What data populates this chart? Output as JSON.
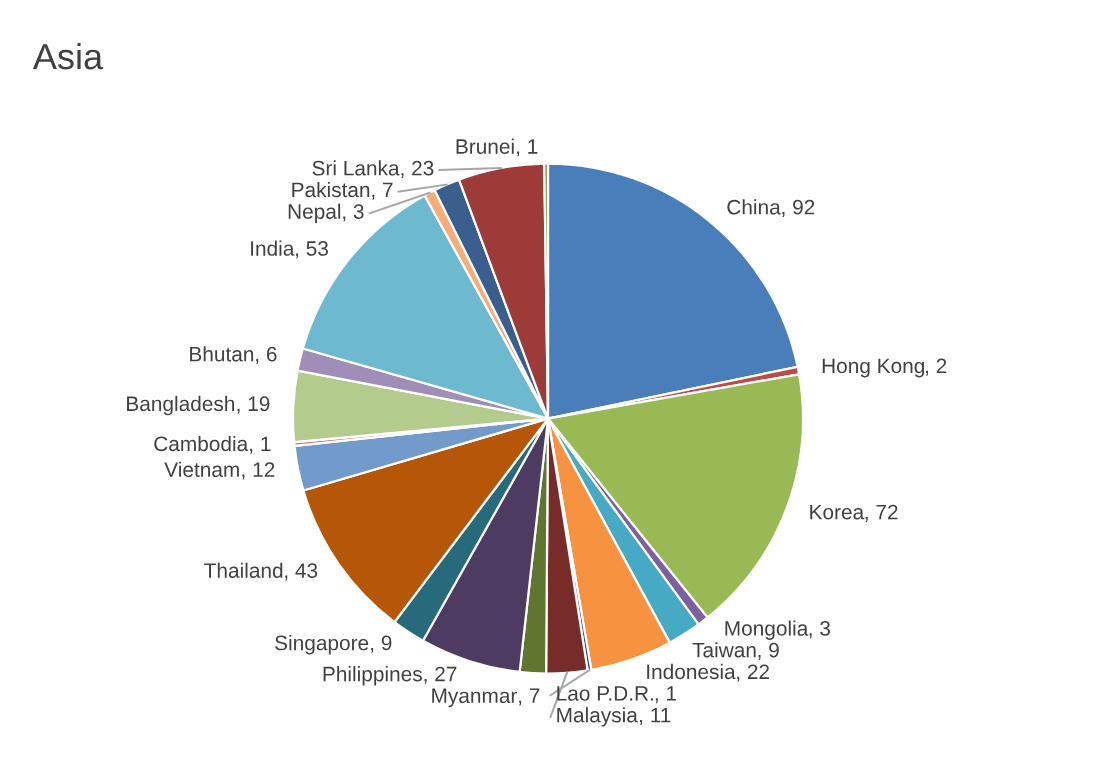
{
  "chart_data": {
    "type": "pie",
    "title": "Asia",
    "categories": [
      "China",
      "Hong Kong",
      "Korea",
      "Mongolia",
      "Taiwan",
      "Indonesia",
      "Lao P.D.R.",
      "Malaysia",
      "Myanmar",
      "Philippines",
      "Singapore",
      "Thailand",
      "Vietnam",
      "Cambodia",
      "Bangladesh",
      "Bhutan",
      "India",
      "Nepal",
      "Pakistan",
      "Sri Lanka",
      "Brunei"
    ],
    "values": [
      92,
      2,
      72,
      3,
      9,
      22,
      1,
      11,
      7,
      27,
      9,
      43,
      12,
      1,
      19,
      6,
      53,
      3,
      7,
      23,
      1
    ],
    "value_labels": [
      ", 92",
      ", 2",
      ", 72",
      ", 3",
      ", 9",
      ", 22",
      ", 1",
      ", 11",
      ", 7",
      ", 27",
      ", 9",
      ", 43",
      ", 12",
      ", 1",
      ", 19",
      ", 6",
      ", 53",
      ", 3",
      ", 7",
      ", 23",
      ", 1"
    ],
    "colors": [
      "#4a7ebb",
      "#be4b48",
      "#98b954",
      "#7d60a0",
      "#46aac5",
      "#f69240",
      "#2c4d75",
      "#772c2a",
      "#5f7530",
      "#4d3b62",
      "#276a7c",
      "#b65708",
      "#729aca",
      "#cd7371",
      "#b3cb8c",
      "#a08eb8",
      "#6dbad0",
      "#f9ac76",
      "#3a5f8e",
      "#9c3b38",
      "#7e9b3f"
    ],
    "legend": false
  }
}
